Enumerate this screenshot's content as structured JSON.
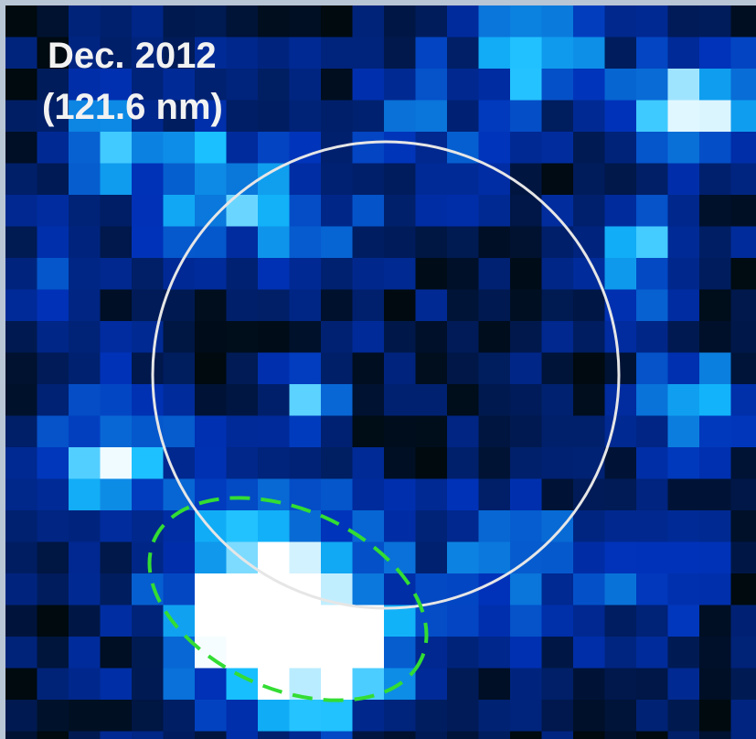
{
  "label": {
    "date": "Dec. 2012",
    "wavelength": "(121.6 nm)"
  }
}
